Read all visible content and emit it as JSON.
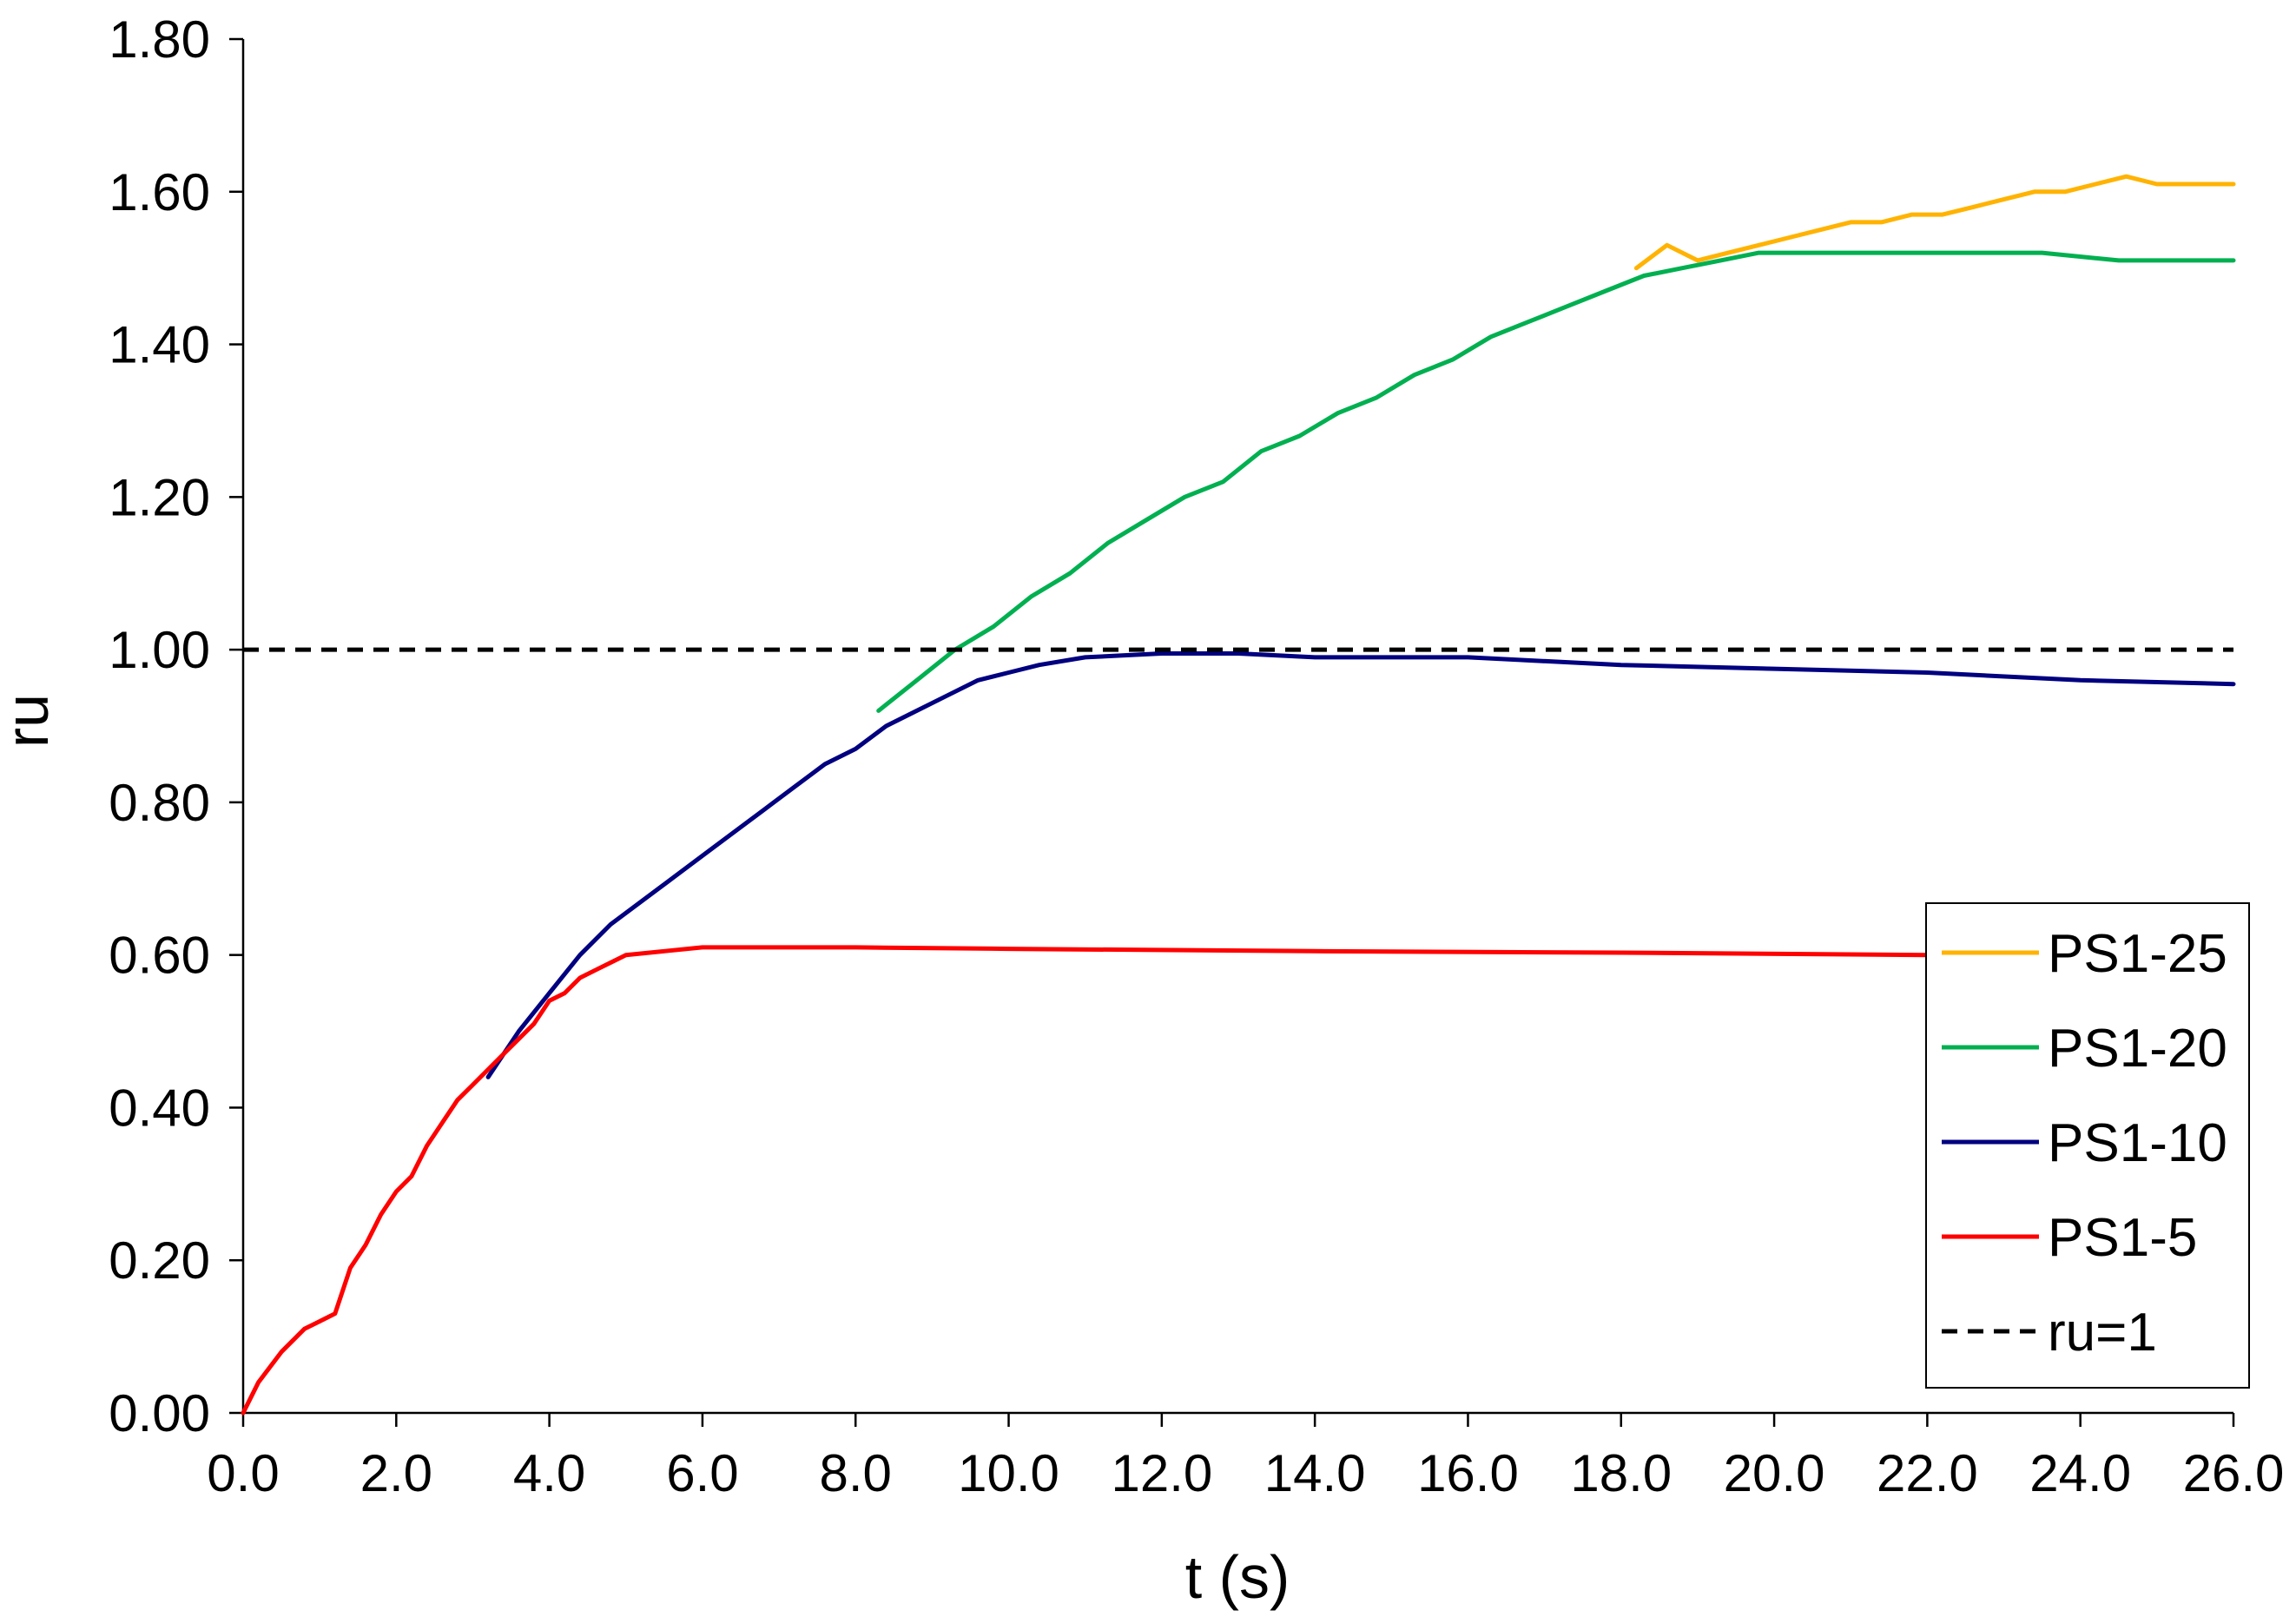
{
  "chart_data": {
    "type": "line",
    "title": "",
    "xlabel": "t (s)",
    "ylabel": "ru",
    "xlim": [
      0,
      26
    ],
    "ylim": [
      0,
      1.8
    ],
    "x_ticks": [
      "0.0",
      "2.0",
      "4.0",
      "6.0",
      "8.0",
      "10.0",
      "12.0",
      "14.0",
      "16.0",
      "18.0",
      "20.0",
      "22.0",
      "24.0",
      "26.0"
    ],
    "y_ticks": [
      "0.00",
      "0.20",
      "0.40",
      "0.60",
      "0.80",
      "1.00",
      "1.20",
      "1.40",
      "1.60",
      "1.80"
    ],
    "grid": false,
    "legend_position": "bottom-right",
    "series": [
      {
        "name": "PS1-25",
        "color": "#FFB300",
        "style": "solid",
        "x": [
          18.2,
          18.6,
          19.0,
          19.4,
          19.8,
          20.2,
          20.6,
          21.0,
          21.4,
          21.8,
          22.2,
          22.6,
          23.0,
          23.4,
          23.8,
          24.2,
          24.6,
          25.0,
          25.4,
          26.0
        ],
        "y": [
          1.5,
          1.53,
          1.51,
          1.52,
          1.53,
          1.54,
          1.55,
          1.56,
          1.56,
          1.57,
          1.57,
          1.58,
          1.59,
          1.6,
          1.6,
          1.61,
          1.62,
          1.61,
          1.61,
          1.61
        ]
      },
      {
        "name": "PS1-20",
        "color": "#00B050",
        "style": "solid",
        "x": [
          8.3,
          8.8,
          9.3,
          9.8,
          10.3,
          10.8,
          11.3,
          11.8,
          12.3,
          12.8,
          13.3,
          13.8,
          14.3,
          14.8,
          15.3,
          15.8,
          16.3,
          16.8,
          17.3,
          17.8,
          18.3,
          18.8,
          19.3,
          19.8,
          20.5,
          21.5,
          22.5,
          23.5,
          24.5,
          25.5,
          26.0
        ],
        "y": [
          0.92,
          0.96,
          1.0,
          1.03,
          1.07,
          1.1,
          1.14,
          1.17,
          1.2,
          1.22,
          1.26,
          1.28,
          1.31,
          1.33,
          1.36,
          1.38,
          1.41,
          1.43,
          1.45,
          1.47,
          1.49,
          1.5,
          1.51,
          1.52,
          1.52,
          1.52,
          1.52,
          1.52,
          1.51,
          1.51,
          1.51
        ]
      },
      {
        "name": "PS1-10",
        "color": "#000080",
        "style": "solid",
        "x": [
          3.2,
          3.6,
          4.0,
          4.4,
          4.8,
          5.2,
          5.6,
          6.0,
          6.4,
          6.8,
          7.2,
          7.6,
          8.0,
          8.4,
          8.8,
          9.2,
          9.6,
          10.0,
          10.4,
          11.0,
          12.0,
          13.0,
          14.0,
          16.0,
          18.0,
          20.0,
          22.0,
          24.0,
          26.0
        ],
        "y": [
          0.44,
          0.5,
          0.55,
          0.6,
          0.64,
          0.67,
          0.7,
          0.73,
          0.76,
          0.79,
          0.82,
          0.85,
          0.87,
          0.9,
          0.92,
          0.94,
          0.96,
          0.97,
          0.98,
          0.99,
          0.995,
          0.995,
          0.99,
          0.99,
          0.98,
          0.975,
          0.97,
          0.96,
          0.955
        ]
      },
      {
        "name": "PS1-5",
        "color": "#FF0000",
        "style": "solid",
        "x": [
          0.0,
          0.2,
          0.5,
          0.8,
          1.0,
          1.2,
          1.4,
          1.6,
          1.8,
          2.0,
          2.2,
          2.4,
          2.6,
          2.8,
          3.0,
          3.2,
          3.4,
          3.6,
          3.8,
          4.0,
          4.2,
          4.4,
          4.6,
          4.8,
          5.0,
          5.5,
          6.0,
          7.0,
          8.0,
          10.0,
          14.0,
          18.0,
          22.0,
          26.0
        ],
        "y": [
          0.0,
          0.04,
          0.08,
          0.11,
          0.12,
          0.13,
          0.19,
          0.22,
          0.26,
          0.29,
          0.31,
          0.35,
          0.38,
          0.41,
          0.43,
          0.45,
          0.47,
          0.49,
          0.51,
          0.54,
          0.55,
          0.57,
          0.58,
          0.59,
          0.6,
          0.605,
          0.61,
          0.61,
          0.61,
          0.608,
          0.605,
          0.603,
          0.6,
          0.6
        ]
      },
      {
        "name": "ru=1",
        "color": "#000000",
        "style": "dashed",
        "x": [
          0,
          26
        ],
        "y": [
          1.0,
          1.0
        ]
      }
    ]
  }
}
